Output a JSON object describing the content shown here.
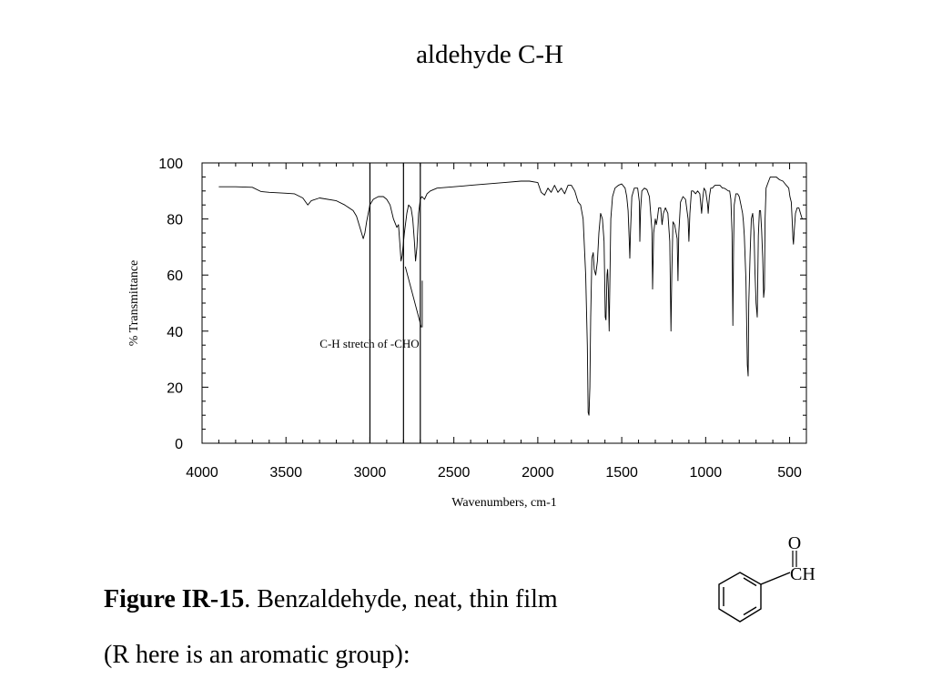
{
  "slide": {
    "title": "aldehyde C-H"
  },
  "caption": {
    "figure_label": "Figure IR-15",
    "figure_text": ".  Benzaldehyde, neat, thin film",
    "line2": "(R here is an aromatic group):"
  },
  "molecule": {
    "oxygen_label": "O",
    "ch_label": "CH"
  },
  "chart_data": {
    "type": "line",
    "xlabel": "Wavenumbers, cm-1",
    "ylabel": "% Transmittance",
    "xlim": [
      4000,
      400
    ],
    "ylim": [
      0,
      100
    ],
    "x_ticks": [
      4000,
      3500,
      3000,
      2500,
      2000,
      1500,
      1000,
      500
    ],
    "y_ticks": [
      0,
      20,
      40,
      60,
      80,
      100
    ],
    "grid": false,
    "reference_lines_x": [
      3000,
      2800,
      2700
    ],
    "annotation": {
      "text": "C-H stretch of -CHO",
      "points_to": [
        2710,
        42
      ]
    },
    "series": [
      {
        "points": [
          [
            3900,
            91.5
          ],
          [
            3800,
            91.5
          ],
          [
            3700,
            91.3
          ],
          [
            3650,
            89.8
          ],
          [
            3600,
            89.5
          ],
          [
            3500,
            89.2
          ],
          [
            3450,
            89
          ],
          [
            3400,
            87.5
          ],
          [
            3370,
            85
          ],
          [
            3350,
            86.5
          ],
          [
            3300,
            87.5
          ],
          [
            3200,
            86.5
          ],
          [
            3150,
            85
          ],
          [
            3100,
            83
          ],
          [
            3080,
            81
          ],
          [
            3060,
            77
          ],
          [
            3040,
            73
          ],
          [
            3030,
            75
          ],
          [
            3020,
            79
          ],
          [
            3000,
            85
          ],
          [
            2980,
            87
          ],
          [
            2950,
            88
          ],
          [
            2920,
            88
          ],
          [
            2900,
            87
          ],
          [
            2880,
            85
          ],
          [
            2860,
            80
          ],
          [
            2840,
            77
          ],
          [
            2830,
            78
          ],
          [
            2820,
            70
          ],
          [
            2815,
            65
          ],
          [
            2808,
            67
          ],
          [
            2795,
            75
          ],
          [
            2780,
            82
          ],
          [
            2770,
            85
          ],
          [
            2755,
            84
          ],
          [
            2745,
            80
          ],
          [
            2735,
            72
          ],
          [
            2728,
            65
          ],
          [
            2720,
            70
          ],
          [
            2710,
            82
          ],
          [
            2700,
            87
          ],
          [
            2690,
            88
          ],
          [
            2675,
            87
          ],
          [
            2660,
            89
          ],
          [
            2640,
            90
          ],
          [
            2600,
            91
          ],
          [
            2500,
            91.5
          ],
          [
            2400,
            92
          ],
          [
            2300,
            92.5
          ],
          [
            2200,
            93
          ],
          [
            2100,
            93.5
          ],
          [
            2050,
            93.5
          ],
          [
            2000,
            93
          ],
          [
            1980,
            89.5
          ],
          [
            1960,
            88.5
          ],
          [
            1940,
            91
          ],
          [
            1920,
            89.5
          ],
          [
            1900,
            92
          ],
          [
            1880,
            89.5
          ],
          [
            1860,
            91
          ],
          [
            1840,
            89
          ],
          [
            1820,
            92
          ],
          [
            1800,
            92
          ],
          [
            1780,
            90
          ],
          [
            1760,
            86
          ],
          [
            1745,
            85
          ],
          [
            1730,
            80
          ],
          [
            1715,
            60
          ],
          [
            1705,
            35
          ],
          [
            1700,
            11
          ],
          [
            1695,
            10
          ],
          [
            1690,
            20
          ],
          [
            1685,
            45
          ],
          [
            1678,
            66
          ],
          [
            1670,
            68
          ],
          [
            1664,
            62
          ],
          [
            1655,
            60
          ],
          [
            1645,
            65
          ],
          [
            1636,
            75
          ],
          [
            1626,
            82
          ],
          [
            1615,
            80
          ],
          [
            1605,
            72
          ],
          [
            1598,
            45
          ],
          [
            1594,
            44
          ],
          [
            1588,
            60
          ],
          [
            1584,
            62
          ],
          [
            1580,
            55
          ],
          [
            1575,
            40
          ],
          [
            1570,
            60
          ],
          [
            1565,
            80
          ],
          [
            1555,
            88
          ],
          [
            1540,
            91
          ],
          [
            1520,
            92
          ],
          [
            1500,
            92.5
          ],
          [
            1480,
            91
          ],
          [
            1470,
            88
          ],
          [
            1462,
            83
          ],
          [
            1455,
            72
          ],
          [
            1452,
            66
          ],
          [
            1448,
            75
          ],
          [
            1440,
            88
          ],
          [
            1425,
            91
          ],
          [
            1405,
            91
          ],
          [
            1395,
            86
          ],
          [
            1392,
            72
          ],
          [
            1388,
            83
          ],
          [
            1380,
            90
          ],
          [
            1365,
            91
          ],
          [
            1350,
            90.5
          ],
          [
            1335,
            88
          ],
          [
            1320,
            76
          ],
          [
            1316,
            55
          ],
          [
            1310,
            75
          ],
          [
            1300,
            80
          ],
          [
            1294,
            78
          ],
          [
            1288,
            80
          ],
          [
            1280,
            84
          ],
          [
            1268,
            84
          ],
          [
            1260,
            78
          ],
          [
            1252,
            82
          ],
          [
            1240,
            84
          ],
          [
            1225,
            82
          ],
          [
            1214,
            72
          ],
          [
            1207,
            40
          ],
          [
            1202,
            60
          ],
          [
            1195,
            79
          ],
          [
            1185,
            78
          ],
          [
            1170,
            73
          ],
          [
            1165,
            58
          ],
          [
            1160,
            75
          ],
          [
            1150,
            86
          ],
          [
            1135,
            88
          ],
          [
            1120,
            87
          ],
          [
            1105,
            80
          ],
          [
            1100,
            72
          ],
          [
            1094,
            82
          ],
          [
            1085,
            90
          ],
          [
            1075,
            90
          ],
          [
            1060,
            89
          ],
          [
            1048,
            90
          ],
          [
            1035,
            89
          ],
          [
            1024,
            82
          ],
          [
            1018,
            87
          ],
          [
            1010,
            91
          ],
          [
            1000,
            90
          ],
          [
            988,
            85
          ],
          [
            985,
            82
          ],
          [
            978,
            88
          ],
          [
            970,
            91
          ],
          [
            960,
            91
          ],
          [
            945,
            92
          ],
          [
            930,
            92
          ],
          [
            915,
            92
          ],
          [
            900,
            91
          ],
          [
            890,
            91
          ],
          [
            876,
            90.5
          ],
          [
            865,
            90
          ],
          [
            857,
            90
          ],
          [
            850,
            87
          ],
          [
            843,
            75
          ],
          [
            838,
            42
          ],
          [
            834,
            70
          ],
          [
            830,
            85
          ],
          [
            820,
            89
          ],
          [
            810,
            89
          ],
          [
            800,
            88
          ],
          [
            790,
            85
          ],
          [
            780,
            82
          ],
          [
            775,
            79
          ],
          [
            770,
            74
          ],
          [
            760,
            58
          ],
          [
            752,
            28
          ],
          [
            747,
            24
          ],
          [
            743,
            50
          ],
          [
            735,
            68
          ],
          [
            728,
            80
          ],
          [
            720,
            82
          ],
          [
            712,
            75
          ],
          [
            707,
            62
          ],
          [
            700,
            50
          ],
          [
            693,
            45
          ],
          [
            686,
            74
          ],
          [
            680,
            83
          ],
          [
            673,
            83
          ],
          [
            667,
            76
          ],
          [
            660,
            66
          ],
          [
            655,
            52
          ],
          [
            650,
            55
          ],
          [
            646,
            80
          ],
          [
            640,
            91
          ],
          [
            628,
            93
          ],
          [
            615,
            95
          ],
          [
            600,
            95
          ],
          [
            580,
            95
          ],
          [
            560,
            94
          ],
          [
            540,
            93.5
          ],
          [
            520,
            92
          ],
          [
            505,
            91
          ],
          [
            498,
            88
          ],
          [
            490,
            86
          ],
          [
            485,
            80
          ],
          [
            480,
            73
          ],
          [
            477,
            71
          ],
          [
            472,
            76
          ],
          [
            465,
            82
          ],
          [
            455,
            84
          ],
          [
            445,
            84
          ],
          [
            435,
            82
          ],
          [
            425,
            80
          ],
          [
            410,
            80
          ],
          [
            402,
            80
          ]
        ]
      }
    ]
  }
}
